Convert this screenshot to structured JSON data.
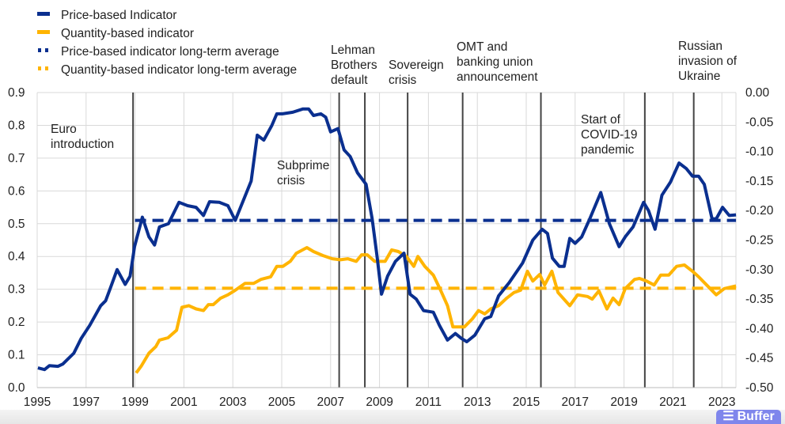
{
  "chart_data": {
    "type": "line",
    "title": "",
    "xlabel": "",
    "ylabel": "",
    "xlim": [
      1995,
      2023.6
    ],
    "ylim": [
      0,
      0.9
    ],
    "y2lim": [
      -0.5,
      0.0
    ],
    "grid": true,
    "legend_position": "top-left",
    "x_tick_labels": [
      "1995",
      "1997",
      "1999",
      "2001",
      "2003",
      "2005",
      "2007",
      "2009",
      "2011",
      "2013",
      "2015",
      "2017",
      "2019",
      "2021",
      "2023"
    ],
    "y_tick_labels": [
      "0.0",
      "0.1",
      "0.2",
      "0.3",
      "0.4",
      "0.5",
      "0.6",
      "0.7",
      "0.8",
      "0.9"
    ],
    "y2_tick_labels": [
      "0.00",
      "-0.05",
      "-0.10",
      "-0.15",
      "-0.20",
      "-0.25",
      "-0.30",
      "-0.35",
      "-0.40",
      "-0.45",
      "-0.50"
    ],
    "series": [
      {
        "name": "Price-based Indicator",
        "color": "#0a2f8f",
        "style": "solid",
        "x": [
          1995.03,
          1995.3,
          1995.5,
          1995.85,
          1996.05,
          1996.5,
          1996.8,
          1997.15,
          1997.6,
          1997.8,
          1998.0,
          1998.27,
          1998.6,
          1998.8,
          1998.98,
          1999.3,
          1999.57,
          1999.8,
          2000.0,
          2000.37,
          2000.8,
          2001.15,
          2001.5,
          2001.8,
          2002.05,
          2002.45,
          2002.8,
          2003.1,
          2003.75,
          2004.0,
          2004.27,
          2004.6,
          2004.8,
          2005.03,
          2005.45,
          2005.87,
          2006.1,
          2006.3,
          2006.6,
          2006.8,
          2007.0,
          2007.3,
          2007.55,
          2007.8,
          2008.1,
          2008.45,
          2008.7,
          2008.9,
          2009.08,
          2009.33,
          2009.65,
          2010.0,
          2010.25,
          2010.5,
          2010.8,
          2011.2,
          2011.45,
          2011.78,
          2012.1,
          2012.35,
          2012.57,
          2012.9,
          2013.3,
          2013.55,
          2013.87,
          2014.3,
          2014.85,
          2015.27,
          2015.65,
          2015.87,
          2016.07,
          2016.35,
          2016.55,
          2016.78,
          2017.0,
          2017.27,
          2017.6,
          2018.05,
          2018.4,
          2018.8,
          2019.05,
          2019.37,
          2019.8,
          2020.0,
          2020.27,
          2020.55,
          2020.9,
          2021.25,
          2021.55,
          2021.8,
          2022.05,
          2022.28,
          2022.6,
          2022.77,
          2023.03,
          2023.3,
          2023.58
        ],
        "y": [
          0.06,
          0.055,
          0.067,
          0.065,
          0.072,
          0.105,
          0.15,
          0.19,
          0.25,
          0.265,
          0.305,
          0.36,
          0.315,
          0.34,
          0.43,
          0.52,
          0.46,
          0.435,
          0.49,
          0.5,
          0.565,
          0.555,
          0.55,
          0.525,
          0.567,
          0.565,
          0.555,
          0.51,
          0.63,
          0.77,
          0.755,
          0.8,
          0.835,
          0.835,
          0.84,
          0.85,
          0.85,
          0.83,
          0.835,
          0.825,
          0.78,
          0.79,
          0.725,
          0.705,
          0.655,
          0.62,
          0.515,
          0.4,
          0.285,
          0.34,
          0.385,
          0.41,
          0.285,
          0.27,
          0.235,
          0.23,
          0.19,
          0.145,
          0.165,
          0.15,
          0.14,
          0.16,
          0.21,
          0.217,
          0.28,
          0.32,
          0.38,
          0.45,
          0.483,
          0.47,
          0.395,
          0.37,
          0.37,
          0.455,
          0.44,
          0.46,
          0.515,
          0.595,
          0.5,
          0.43,
          0.46,
          0.49,
          0.565,
          0.54,
          0.483,
          0.587,
          0.627,
          0.685,
          0.668,
          0.645,
          0.645,
          0.62,
          0.515,
          0.515,
          0.55,
          0.525,
          0.527
        ]
      },
      {
        "name": "Quantity-based indicator",
        "color": "#ffb400",
        "style": "solid",
        "x": [
          1999.05,
          1999.25,
          1999.57,
          1999.85,
          2000.0,
          2000.35,
          2000.7,
          2000.92,
          2001.2,
          2001.5,
          2001.8,
          2002.0,
          2002.2,
          2002.5,
          2002.8,
          2003.1,
          2003.5,
          2003.85,
          2004.15,
          2004.55,
          2004.8,
          2005.05,
          2005.35,
          2005.6,
          2006.03,
          2006.3,
          2006.68,
          2007.07,
          2007.4,
          2007.7,
          2008.05,
          2008.27,
          2008.5,
          2008.8,
          2009.23,
          2009.5,
          2009.77,
          2010.1,
          2010.4,
          2010.57,
          2010.85,
          2011.2,
          2011.5,
          2011.78,
          2012.0,
          2012.47,
          2012.8,
          2013.05,
          2013.3,
          2013.55,
          2013.87,
          2014.2,
          2014.5,
          2014.77,
          2015.05,
          2015.27,
          2015.55,
          2015.75,
          2016.05,
          2016.3,
          2016.78,
          2017.1,
          2017.5,
          2017.7,
          2017.97,
          2018.3,
          2018.55,
          2018.8,
          2019.05,
          2019.43,
          2019.63,
          2019.92,
          2020.23,
          2020.5,
          2020.83,
          2021.15,
          2021.47,
          2021.8,
          2022.05,
          2022.38,
          2022.77,
          2023.1,
          2023.58
        ],
        "y": [
          0.045,
          0.065,
          0.105,
          0.125,
          0.145,
          0.152,
          0.175,
          0.245,
          0.25,
          0.24,
          0.235,
          0.253,
          0.253,
          0.273,
          0.283,
          0.297,
          0.318,
          0.318,
          0.33,
          0.338,
          0.37,
          0.37,
          0.385,
          0.41,
          0.427,
          0.415,
          0.403,
          0.393,
          0.39,
          0.393,
          0.385,
          0.405,
          0.405,
          0.385,
          0.385,
          0.42,
          0.415,
          0.4,
          0.37,
          0.4,
          0.37,
          0.343,
          0.297,
          0.25,
          0.185,
          0.185,
          0.21,
          0.235,
          0.225,
          0.24,
          0.25,
          0.273,
          0.29,
          0.297,
          0.355,
          0.325,
          0.345,
          0.313,
          0.355,
          0.29,
          0.25,
          0.283,
          0.278,
          0.27,
          0.295,
          0.24,
          0.273,
          0.253,
          0.302,
          0.33,
          0.333,
          0.325,
          0.313,
          0.343,
          0.343,
          0.37,
          0.374,
          0.355,
          0.338,
          0.313,
          0.283,
          0.302,
          0.31
        ]
      },
      {
        "name": "Price-based indicator long-term average",
        "color": "#0a2f8f",
        "style": "dashed",
        "x": [
          1999.0,
          2023.58
        ],
        "y": [
          0.51,
          0.51
        ]
      },
      {
        "name": "Quantity-based indicator long-term average",
        "color": "#ffb400",
        "style": "dashed",
        "x": [
          1999.0,
          2023.58
        ],
        "y": [
          0.303,
          0.303
        ]
      }
    ],
    "events": [
      {
        "x": 1998.92,
        "label_lines": [
          "Euro",
          "introduction"
        ]
      },
      {
        "x": 2007.35,
        "label_lines": [
          "Subprime",
          "crisis"
        ]
      },
      {
        "x": 2008.4,
        "label_lines": [
          "Lehman",
          "Brothers",
          "default"
        ]
      },
      {
        "x": 2010.15,
        "label_lines": [
          "Sovereign",
          "crisis"
        ]
      },
      {
        "x": 2012.4,
        "label_lines": [
          "OMT and",
          "banking union",
          "announcement"
        ]
      },
      {
        "x": 2015.6,
        "label_lines": [],
        "label": ""
      },
      {
        "x": 2019.85,
        "label_lines": [
          "Start of",
          "COVID-19",
          "pandemic"
        ]
      },
      {
        "x": 2021.85,
        "label_lines": [
          "Russian",
          "invasion of",
          "Ukraine"
        ]
      }
    ]
  },
  "watermark": {
    "label": "Buffer"
  }
}
